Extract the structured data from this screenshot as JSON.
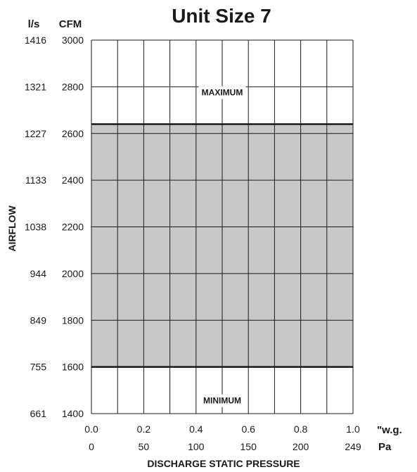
{
  "chart_data": {
    "type": "area",
    "title": "Unit Size 7",
    "y_unit_primary": "CFM",
    "y_unit_secondary": "l/s",
    "ylabel": "AIRFLOW",
    "ylim": [
      1400,
      3000
    ],
    "y_ticks_cfm": [
      "1400",
      "1600",
      "1800",
      "2000",
      "2200",
      "2400",
      "2600",
      "2800",
      "3000"
    ],
    "y_ticks_cfm_values": [
      1400,
      1600,
      1800,
      2000,
      2200,
      2400,
      2600,
      2800,
      3000
    ],
    "y_ticks_ls": [
      "661",
      "755",
      "849",
      "944",
      "1038",
      "1133",
      "1227",
      "1321",
      "1416"
    ],
    "xlabel": "DISCHARGE STATIC PRESSURE",
    "x_unit_primary": "\"w.g.",
    "x_unit_secondary": "Pa",
    "xlim": [
      0.0,
      1.0
    ],
    "x_ticks_wg": [
      "0.0",
      "0.2",
      "0.4",
      "0.6",
      "0.8",
      "1.0"
    ],
    "x_ticks_wg_values": [
      0.0,
      0.2,
      0.4,
      0.6,
      0.8,
      1.0
    ],
    "x_ticks_pa": [
      "0",
      "50",
      "100",
      "150",
      "200",
      "249"
    ],
    "x_grid_step": 0.1,
    "grid": true,
    "operating_range": {
      "maximum_label": "MAXIMUM",
      "maximum_cfm": 2640,
      "minimum_label": "MINIMUM",
      "minimum_cfm": 1600
    },
    "colors": {
      "fill": "#c8c8c8",
      "line": "#1a1a1a"
    }
  }
}
